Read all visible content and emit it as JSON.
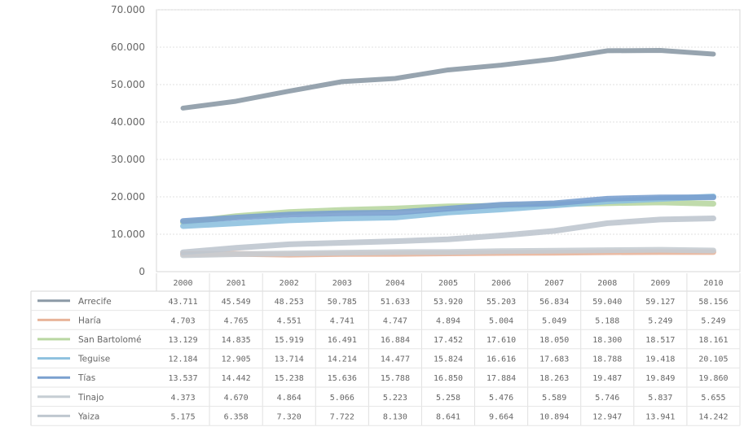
{
  "chart_data": {
    "type": "line",
    "title": "",
    "xlabel": "",
    "ylabel": "",
    "ylim": [
      0,
      70000
    ],
    "y_ticks": [
      "0",
      "10.000",
      "20.000",
      "30.000",
      "40.000",
      "50.000",
      "60.000",
      "70.000"
    ],
    "grid": true,
    "legend": "data table below chart",
    "categories": [
      "2000",
      "2001",
      "2002",
      "2003",
      "2004",
      "2005",
      "2006",
      "2007",
      "2008",
      "2009",
      "2010"
    ],
    "series": [
      {
        "name": "Arrecife",
        "color": "#8c9aa6",
        "values": [
          43711,
          45549,
          48253,
          50785,
          51633,
          53920,
          55203,
          56834,
          59040,
          59127,
          58156
        ],
        "labels": [
          "43.711",
          "45.549",
          "48.253",
          "50.785",
          "51.633",
          "53.920",
          "55.203",
          "56.834",
          "59.040",
          "59.127",
          "58.156"
        ]
      },
      {
        "name": "Haría",
        "color": "#e8b49a",
        "values": [
          4703,
          4765,
          4551,
          4741,
          4747,
          4894,
          5004,
          5049,
          5188,
          5249,
          5249
        ],
        "labels": [
          "4.703",
          "4.765",
          "4.551",
          "4.741",
          "4.747",
          "4.894",
          "5.004",
          "5.049",
          "5.188",
          "5.249",
          "5.249"
        ]
      },
      {
        "name": "San Bartolomé",
        "color": "#b9d7a2",
        "values": [
          13129,
          14835,
          15919,
          16491,
          16884,
          17452,
          17610,
          18050,
          18300,
          18517,
          18161
        ],
        "labels": [
          "13.129",
          "14.835",
          "15.919",
          "16.491",
          "16.884",
          "17.452",
          "17.610",
          "18.050",
          "18.300",
          "18.517",
          "18.161"
        ]
      },
      {
        "name": "Teguise",
        "color": "#8ec1df",
        "values": [
          12184,
          12905,
          13714,
          14214,
          14477,
          15824,
          16616,
          17683,
          18788,
          19418,
          20105
        ],
        "labels": [
          "12.184",
          "12.905",
          "13.714",
          "14.214",
          "14.477",
          "15.824",
          "16.616",
          "17.683",
          "18.788",
          "19.418",
          "20.105"
        ]
      },
      {
        "name": "Tías",
        "color": "#7aa0cf",
        "values": [
          13537,
          14442,
          15238,
          15636,
          15788,
          16850,
          17884,
          18263,
          19487,
          19849,
          19860
        ],
        "labels": [
          "13.537",
          "14.442",
          "15.238",
          "15.636",
          "15.788",
          "16.850",
          "17.884",
          "18.263",
          "19.487",
          "19.849",
          "19.860"
        ]
      },
      {
        "name": "Tinajo",
        "color": "#c6cdd3",
        "values": [
          4373,
          4670,
          4864,
          5066,
          5223,
          5258,
          5476,
          5589,
          5746,
          5837,
          5655
        ],
        "labels": [
          "4.373",
          "4.670",
          "4.864",
          "5.066",
          "5.223",
          "5.258",
          "5.476",
          "5.589",
          "5.746",
          "5.837",
          "5.655"
        ]
      },
      {
        "name": "Yaiza",
        "color": "#bfc7cf",
        "values": [
          5175,
          6358,
          7320,
          7722,
          8130,
          8641,
          9664,
          10894,
          12947,
          13941,
          14242
        ],
        "labels": [
          "5.175",
          "6.358",
          "7.320",
          "7.722",
          "8.130",
          "8.641",
          "9.664",
          "10.894",
          "12.947",
          "13.941",
          "14.242"
        ]
      }
    ]
  }
}
